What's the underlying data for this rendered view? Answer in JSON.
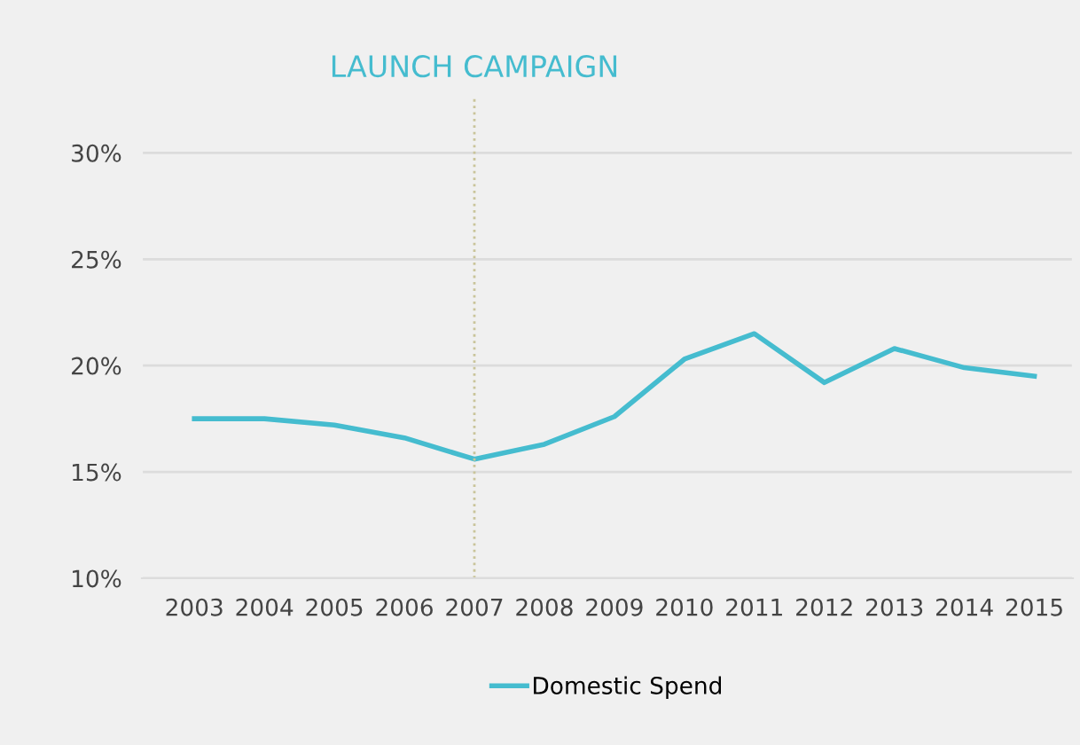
{
  "chart_data": {
    "type": "line",
    "x": [
      2003,
      2004,
      2005,
      2006,
      2007,
      2008,
      2009,
      2010,
      2011,
      2012,
      2013,
      2014,
      2015
    ],
    "series": [
      {
        "name": "Domestic Spend",
        "color": "#45bccf",
        "values": [
          17.5,
          17.5,
          17.2,
          16.6,
          15.6,
          16.3,
          17.6,
          20.3,
          21.5,
          19.2,
          20.8,
          19.9,
          19.5
        ]
      }
    ],
    "xlim": [
      2002.25,
      2015.55
    ],
    "xticks": [
      2003,
      2004,
      2005,
      2006,
      2007,
      2008,
      2009,
      2010,
      2011,
      2012,
      2013,
      2014,
      2015
    ],
    "ylim": [
      10,
      32.6
    ],
    "yticks": [
      {
        "value": 10,
        "label": "10%"
      },
      {
        "value": 15,
        "label": "15%"
      },
      {
        "value": 20,
        "label": "20%"
      },
      {
        "value": 25,
        "label": "25%"
      },
      {
        "value": 30,
        "label": "30%"
      }
    ],
    "ref_lines": [
      {
        "axis": "x",
        "value": 2007,
        "label": "LAUNCH CAMPAIGN",
        "color": "#c9c49a",
        "line_style": "dotted"
      }
    ],
    "grid": "y",
    "legend": "bottom",
    "marker": "none",
    "line_style": "solid"
  }
}
